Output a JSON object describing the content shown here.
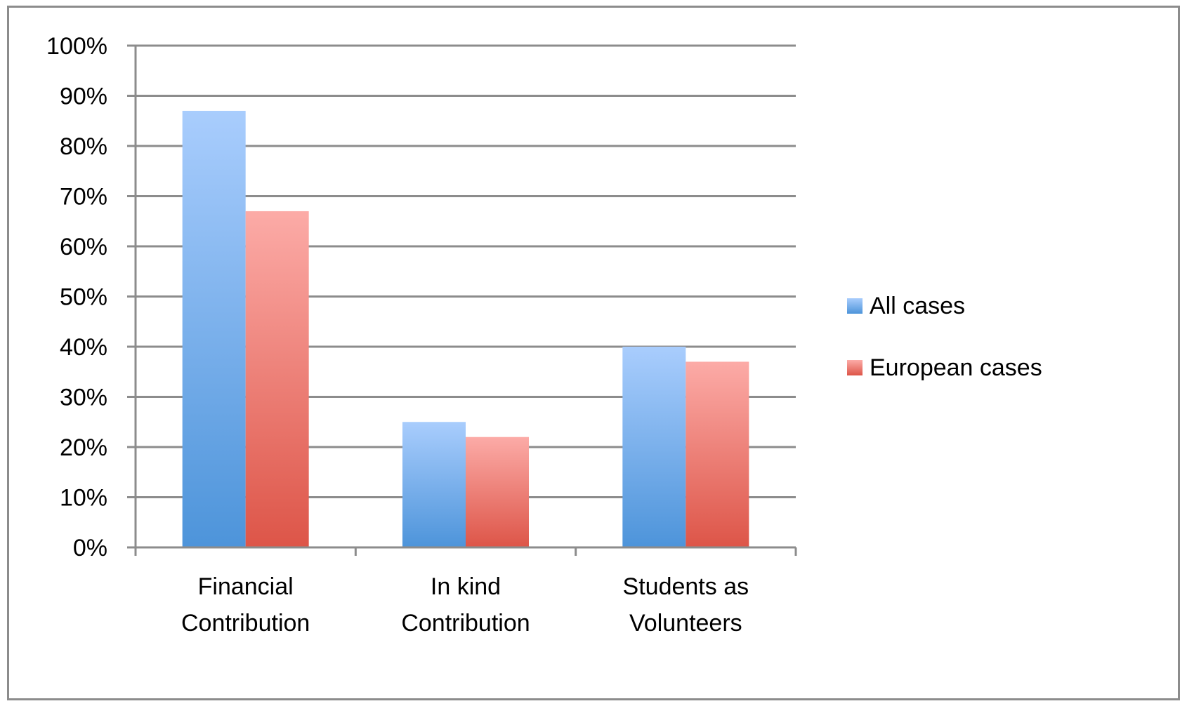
{
  "chart_data": {
    "type": "bar",
    "title": "",
    "xlabel": "",
    "ylabel": "",
    "categories": [
      [
        "Financial",
        "Contribution"
      ],
      [
        "In kind",
        "Contribution"
      ],
      [
        "Students as",
        "Volunteers"
      ]
    ],
    "series": [
      {
        "name": "All cases",
        "values": [
          87,
          25,
          40
        ],
        "color_top": "#a9cdfd",
        "color_bottom": "#4d94da"
      },
      {
        "name": "European cases",
        "values": [
          67,
          22,
          37
        ],
        "color_top": "#fcaba7",
        "color_bottom": "#dd5548"
      }
    ],
    "ylim": [
      0,
      100
    ],
    "yticks": [
      0,
      10,
      20,
      30,
      40,
      50,
      60,
      70,
      80,
      90,
      100
    ],
    "ytick_suffix": "%",
    "grid": true,
    "gridline_color": "#8c8c8c",
    "legend_position": "right"
  }
}
